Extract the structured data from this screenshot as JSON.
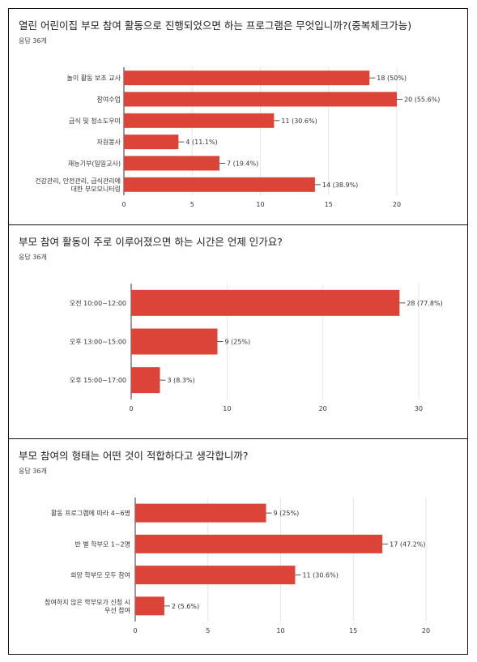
{
  "colors": {
    "bar": "#db4437",
    "grid": "#e6e6e6",
    "axis": "#333333",
    "text": "#333333"
  },
  "chart_data": [
    {
      "type": "bar",
      "orientation": "horizontal",
      "title": "열린 어린이집 부모 참여 활동으로 진행되었으면 하는 프로그램은 무엇입니까?(중복체크가능)",
      "subtitle": "응답 36개",
      "categories": [
        [
          "놀이 활동 보조 교사"
        ],
        [
          "참여수업"
        ],
        [
          "급식 및 청소도우미"
        ],
        [
          "자원봉사"
        ],
        [
          "재능기부(일일교사)"
        ],
        [
          "건강관리, 안전관리, 급식관리에",
          "대한 부모모니터링"
        ]
      ],
      "values": [
        18,
        20,
        11,
        4,
        7,
        14
      ],
      "value_labels": [
        "18 (50%)",
        "20 (55.6%)",
        "11 (30.6%)",
        "4 (11.1%)",
        "7 (19.4%)",
        "14 (38.9%)"
      ],
      "xlim": [
        0,
        20
      ],
      "xticks": [
        0,
        5,
        10,
        15,
        20
      ],
      "grid": true
    },
    {
      "type": "bar",
      "orientation": "horizontal",
      "title": "부모 참여 활동이 주로 이루어졌으면 하는 시간은 언제 인가요?",
      "subtitle": "응답 36개",
      "categories": [
        [
          "오전 10:00~12:00"
        ],
        [
          "오후 13:00~15:00"
        ],
        [
          "오후 15:00~17:00"
        ]
      ],
      "values": [
        28,
        9,
        3
      ],
      "value_labels": [
        "28 (77.8%)",
        "9 (25%)",
        "3 (8.3%)"
      ],
      "xlim": [
        0,
        30
      ],
      "xticks": [
        0,
        10,
        20,
        30
      ],
      "grid": true
    },
    {
      "type": "bar",
      "orientation": "horizontal",
      "title": "부모 참여의 형태는 어떤 것이 적합하다고 생각합니까?",
      "subtitle": "응답 36개",
      "categories": [
        [
          "활동 프로그램에 따라 4~6명"
        ],
        [
          "반 별 학부모 1~2명"
        ],
        [
          "희망 학부모 모두 참여"
        ],
        [
          "참여하지 않은 학부모가 신청 시",
          "우선 참여"
        ]
      ],
      "values": [
        9,
        17,
        11,
        2
      ],
      "value_labels": [
        "9 (25%)",
        "17 (47.2%)",
        "11 (30.6%)",
        "2 (5.6%)"
      ],
      "xlim": [
        0,
        20
      ],
      "xticks": [
        0,
        5,
        10,
        15,
        20
      ],
      "grid": true
    }
  ]
}
